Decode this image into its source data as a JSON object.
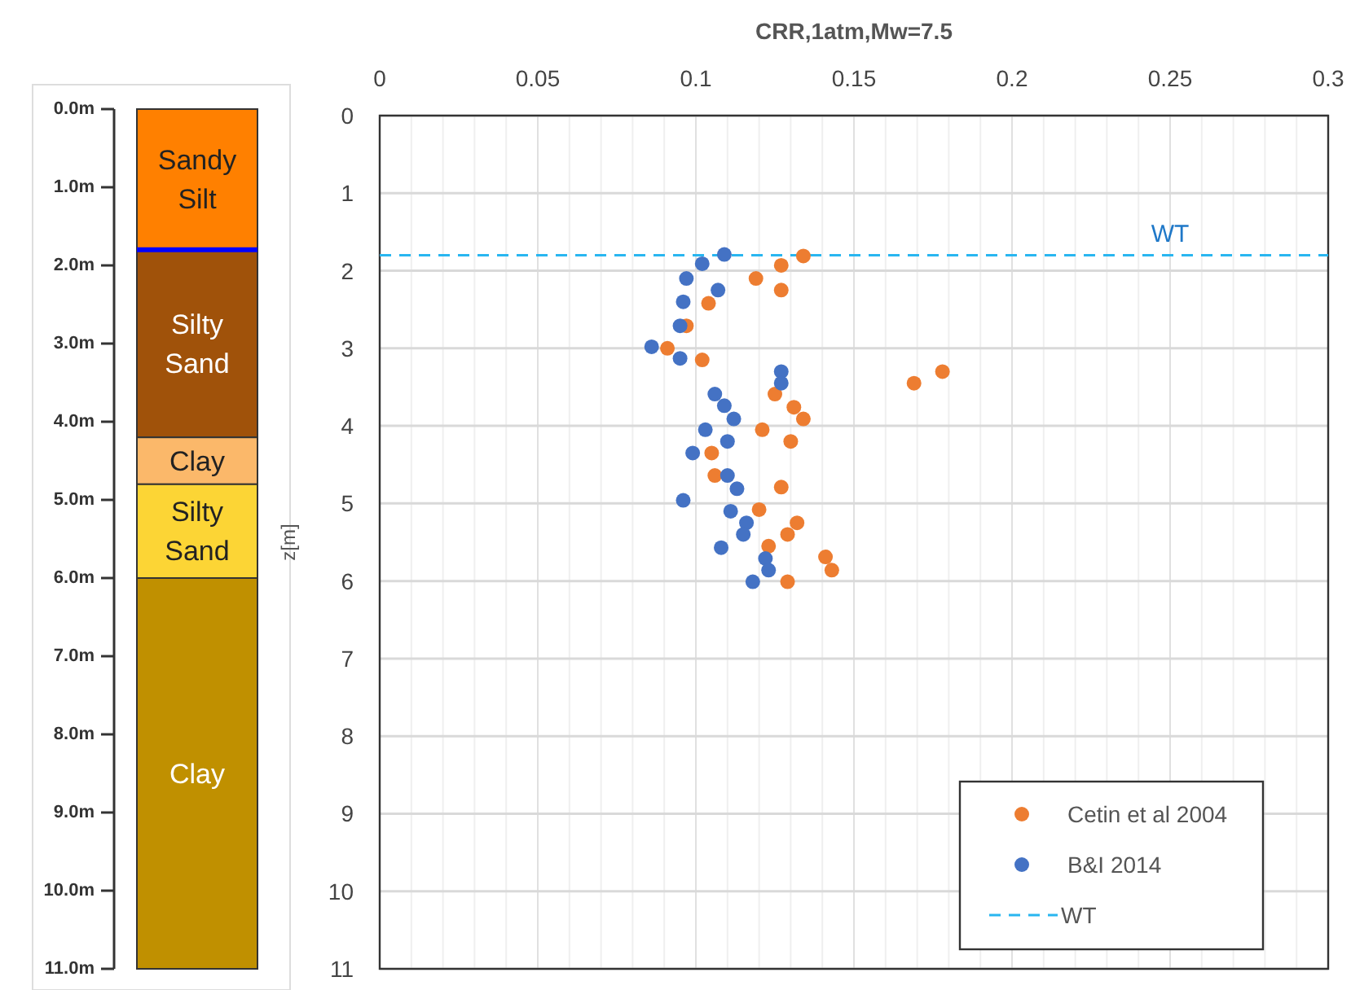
{
  "chart_data": [
    {
      "type": "bar",
      "stacked": true,
      "categories": [
        null
      ],
      "ylim": [
        11,
        0
      ],
      "yticks": [
        {
          "value": 0,
          "label": "0.0m"
        },
        {
          "value": 1,
          "label": "1.0m"
        },
        {
          "value": 2,
          "label": "2.0m"
        },
        {
          "value": 3,
          "label": "3.0m"
        },
        {
          "value": 4,
          "label": "4.0m"
        },
        {
          "value": 5,
          "label": "5.0m"
        },
        {
          "value": 6,
          "label": "6.0m"
        },
        {
          "value": 7,
          "label": "7.0m"
        },
        {
          "value": 8,
          "label": "8.0m"
        },
        {
          "value": 9,
          "label": "9.0m"
        },
        {
          "value": 10,
          "label": "10.0m"
        },
        {
          "value": 11,
          "label": "11.0m"
        }
      ],
      "series": [
        {
          "name": "Sandy Silt",
          "color": "#ff8000",
          "values": [
            1.8
          ]
        },
        {
          "name": "Silty Sand",
          "color": "#a0520a",
          "values": [
            2.4
          ]
        },
        {
          "name": "Clay",
          "color": "#fbb86a",
          "values": [
            0.6
          ]
        },
        {
          "name": "Silty Sand",
          "color": "#fcd535",
          "values": [
            1.2
          ]
        },
        {
          "name": "Clay",
          "color": "#c09000",
          "values": [
            5.0
          ]
        }
      ],
      "ref_lines": [
        {
          "axis": "y",
          "value": 1.8,
          "color": "#0000ff",
          "line_style": "solid"
        }
      ]
    },
    {
      "type": "scatter",
      "xlabel": "CRR,1atm,Mw=7.5",
      "ylabel": "z[m]",
      "xlim": [
        0,
        0.3
      ],
      "ylim": [
        11,
        0
      ],
      "xticks": [
        0,
        {
          "value": 0.01,
          "label": null
        },
        {
          "value": 0.02,
          "label": null
        },
        {
          "value": 0.03,
          "label": null
        },
        {
          "value": 0.04,
          "label": null
        },
        0.05,
        {
          "value": 0.06,
          "label": null
        },
        {
          "value": 0.07,
          "label": null
        },
        {
          "value": 0.08,
          "label": null
        },
        {
          "value": 0.09,
          "label": null
        },
        0.1,
        {
          "value": 0.11,
          "label": null
        },
        {
          "value": 0.12,
          "label": null
        },
        {
          "value": 0.13,
          "label": null
        },
        {
          "value": 0.14,
          "label": null
        },
        0.15,
        {
          "value": 0.16,
          "label": null
        },
        {
          "value": 0.17,
          "label": null
        },
        {
          "value": 0.18,
          "label": null
        },
        {
          "value": 0.19,
          "label": null
        },
        0.2,
        {
          "value": 0.21,
          "label": null
        },
        {
          "value": 0.22,
          "label": null
        },
        {
          "value": 0.23,
          "label": null
        },
        {
          "value": 0.24,
          "label": null
        },
        0.25,
        {
          "value": 0.26,
          "label": null
        },
        {
          "value": 0.27,
          "label": null
        },
        {
          "value": 0.28,
          "label": null
        },
        {
          "value": 0.29,
          "label": null
        },
        0.3
      ],
      "yticks": [
        0,
        1,
        2,
        3,
        4,
        5,
        6,
        7,
        8,
        9,
        10,
        11
      ],
      "grid": true,
      "marker": "circle",
      "legend": "bottom right",
      "series": [
        {
          "name": "Cetin et al 2004",
          "color": "#ed7d31",
          "x": [
            0.134,
            0.127,
            0.119,
            0.127,
            0.104,
            0.097,
            0.091,
            0.102,
            0.178,
            0.169,
            0.125,
            0.131,
            0.134,
            0.121,
            0.13,
            0.105,
            0.106,
            0.127,
            0.12,
            0.132,
            0.129,
            0.123,
            0.141,
            0.143,
            0.129
          ],
          "values": [
            1.81,
            1.93,
            2.1,
            2.25,
            2.42,
            2.71,
            3.0,
            3.15,
            3.3,
            3.45,
            3.59,
            3.76,
            3.91,
            4.05,
            4.2,
            4.35,
            4.64,
            4.79,
            5.08,
            5.25,
            5.4,
            5.55,
            5.69,
            5.86,
            6.01
          ]
        },
        {
          "name": "B&I 2014",
          "color": "#4472c4",
          "x": [
            0.109,
            0.102,
            0.097,
            0.107,
            0.096,
            0.095,
            0.086,
            0.095,
            0.127,
            0.127,
            0.106,
            0.109,
            0.112,
            0.103,
            0.11,
            0.099,
            0.11,
            0.113,
            0.096,
            0.111,
            0.116,
            0.115,
            0.108,
            0.122,
            0.123,
            0.118
          ],
          "values": [
            1.79,
            1.91,
            2.1,
            2.25,
            2.4,
            2.71,
            2.98,
            3.13,
            3.3,
            3.45,
            3.59,
            3.74,
            3.91,
            4.05,
            4.2,
            4.35,
            4.64,
            4.81,
            4.96,
            5.1,
            5.25,
            5.4,
            5.57,
            5.71,
            5.86,
            6.01
          ]
        }
      ],
      "ref_lines": [
        {
          "axis": "y",
          "value": 1.8,
          "label": "WT",
          "color": "#29b6f0",
          "line_style": "dashed"
        }
      ]
    }
  ]
}
